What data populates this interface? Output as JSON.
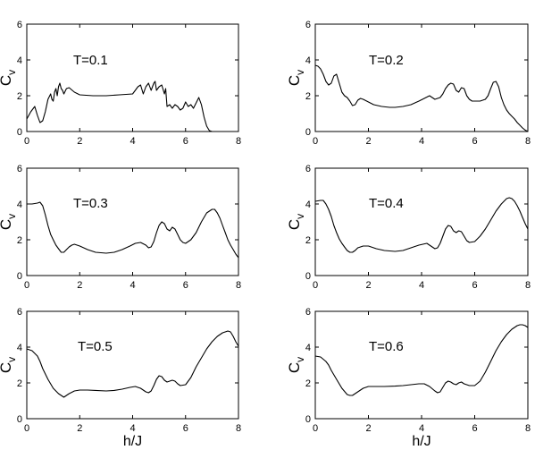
{
  "chart_data": [
    {
      "type": "line",
      "annotation": "T=0.1",
      "xlabel": "",
      "ylabel": "C",
      "ylabel_sub": "v",
      "xlim": [
        0,
        8
      ],
      "ylim": [
        0,
        6
      ],
      "xticks": [
        "0",
        "2",
        "4",
        "6",
        "8"
      ],
      "yticks": [
        "0",
        "2",
        "4",
        "6"
      ],
      "series": [
        {
          "x": [
            0,
            0.15,
            0.3,
            0.4,
            0.5,
            0.6,
            0.7,
            0.8,
            0.9,
            0.95,
            1.0,
            1.05,
            1.1,
            1.15,
            1.2,
            1.25,
            1.3,
            1.35,
            1.4,
            1.5,
            1.6,
            1.8,
            2.0,
            2.5,
            3.0,
            3.5,
            4.0,
            4.2,
            4.3,
            4.4,
            4.5,
            4.6,
            4.7,
            4.8,
            4.85,
            4.9,
            5.0,
            5.1,
            5.2,
            5.25,
            5.3,
            5.4,
            5.5,
            5.6,
            5.7,
            5.8,
            5.9,
            6.0,
            6.1,
            6.2,
            6.3,
            6.4,
            6.5,
            6.6,
            6.7,
            6.8,
            6.9,
            7.0,
            7.5,
            8.0
          ],
          "y": [
            0.7,
            1.1,
            1.4,
            0.9,
            0.5,
            0.6,
            1.1,
            1.8,
            2.1,
            1.8,
            1.7,
            2.2,
            2.4,
            2.0,
            2.5,
            2.7,
            2.4,
            2.3,
            2.1,
            2.4,
            2.45,
            2.2,
            2.05,
            2.0,
            2.0,
            2.05,
            2.1,
            2.5,
            2.6,
            2.1,
            2.5,
            2.7,
            2.3,
            2.7,
            2.8,
            2.3,
            2.5,
            2.6,
            2.1,
            2.4,
            1.4,
            1.5,
            1.3,
            1.5,
            1.4,
            1.2,
            1.3,
            1.65,
            1.4,
            1.5,
            1.3,
            1.6,
            1.9,
            1.5,
            0.8,
            0.3,
            0.05,
            0.0,
            0.0,
            0.0
          ]
        }
      ]
    },
    {
      "type": "line",
      "annotation": "T=0.2",
      "xlabel": "",
      "ylabel": "C",
      "ylabel_sub": "v",
      "xlim": [
        0,
        8
      ],
      "ylim": [
        0,
        6
      ],
      "xticks": [
        "0",
        "2",
        "4",
        "6",
        "8"
      ],
      "yticks": [
        "0",
        "2",
        "4",
        "6"
      ],
      "series": [
        {
          "x": [
            0,
            0.1,
            0.2,
            0.3,
            0.4,
            0.5,
            0.6,
            0.7,
            0.8,
            0.9,
            1.0,
            1.1,
            1.2,
            1.3,
            1.4,
            1.5,
            1.6,
            1.7,
            1.8,
            2.0,
            2.2,
            2.5,
            2.8,
            3.0,
            3.3,
            3.6,
            3.9,
            4.1,
            4.3,
            4.5,
            4.6,
            4.7,
            4.8,
            4.9,
            5.0,
            5.1,
            5.2,
            5.3,
            5.4,
            5.5,
            5.6,
            5.7,
            5.8,
            5.9,
            6.0,
            6.2,
            6.4,
            6.5,
            6.6,
            6.7,
            6.8,
            6.9,
            7.0,
            7.1,
            7.2,
            7.3,
            7.4,
            7.5,
            7.6,
            7.7,
            7.8,
            7.9,
            8.0
          ],
          "y": [
            3.7,
            3.65,
            3.5,
            3.2,
            2.8,
            2.6,
            2.7,
            3.1,
            3.2,
            2.7,
            2.2,
            2.0,
            1.9,
            1.7,
            1.45,
            1.5,
            1.75,
            1.85,
            1.8,
            1.65,
            1.5,
            1.4,
            1.35,
            1.35,
            1.4,
            1.5,
            1.7,
            1.85,
            2.0,
            1.8,
            1.85,
            1.9,
            2.1,
            2.4,
            2.6,
            2.7,
            2.65,
            2.3,
            2.2,
            2.45,
            2.4,
            2.0,
            1.8,
            1.7,
            1.7,
            1.7,
            1.8,
            2.0,
            2.4,
            2.75,
            2.8,
            2.5,
            1.9,
            1.5,
            1.2,
            1.0,
            0.85,
            0.7,
            0.5,
            0.35,
            0.2,
            0.08,
            0.0
          ]
        }
      ]
    },
    {
      "type": "line",
      "annotation": "T=0.3",
      "xlabel": "",
      "ylabel": "C",
      "ylabel_sub": "v",
      "xlim": [
        0,
        8
      ],
      "ylim": [
        0,
        6
      ],
      "xticks": [
        "0",
        "2",
        "4",
        "6",
        "8"
      ],
      "yticks": [
        "0",
        "2",
        "4",
        "6"
      ],
      "series": [
        {
          "x": [
            0,
            0.2,
            0.4,
            0.5,
            0.6,
            0.7,
            0.8,
            0.9,
            1.0,
            1.1,
            1.2,
            1.3,
            1.4,
            1.5,
            1.6,
            1.7,
            1.8,
            2.0,
            2.3,
            2.6,
            3.0,
            3.3,
            3.6,
            3.9,
            4.1,
            4.3,
            4.5,
            4.6,
            4.7,
            4.8,
            4.9,
            5.0,
            5.1,
            5.2,
            5.3,
            5.4,
            5.5,
            5.6,
            5.7,
            5.8,
            5.9,
            6.0,
            6.2,
            6.4,
            6.6,
            6.8,
            7.0,
            7.1,
            7.2,
            7.3,
            7.4,
            7.5,
            7.6,
            7.7,
            7.8,
            7.9,
            8.0
          ],
          "y": [
            4.0,
            4.0,
            4.05,
            4.1,
            3.9,
            3.4,
            2.8,
            2.3,
            2.0,
            1.7,
            1.5,
            1.3,
            1.3,
            1.45,
            1.6,
            1.7,
            1.75,
            1.65,
            1.45,
            1.3,
            1.25,
            1.3,
            1.45,
            1.65,
            1.8,
            1.85,
            1.7,
            1.55,
            1.6,
            1.9,
            2.4,
            2.8,
            3.0,
            2.9,
            2.6,
            2.5,
            2.7,
            2.6,
            2.3,
            2.0,
            1.85,
            1.8,
            2.0,
            2.4,
            3.0,
            3.5,
            3.7,
            3.7,
            3.5,
            3.2,
            2.8,
            2.4,
            2.0,
            1.7,
            1.45,
            1.2,
            1.0
          ]
        }
      ]
    },
    {
      "type": "line",
      "annotation": "T=0.4",
      "xlabel": "",
      "ylabel": "C",
      "ylabel_sub": "v",
      "xlim": [
        0,
        8
      ],
      "ylim": [
        0,
        6
      ],
      "xticks": [
        "0",
        "2",
        "4",
        "6",
        "8"
      ],
      "yticks": [
        "0",
        "2",
        "4",
        "6"
      ],
      "series": [
        {
          "x": [
            0,
            0.2,
            0.3,
            0.4,
            0.5,
            0.6,
            0.7,
            0.8,
            0.9,
            1.0,
            1.1,
            1.2,
            1.3,
            1.4,
            1.5,
            1.6,
            1.8,
            2.0,
            2.3,
            2.6,
            3.0,
            3.3,
            3.6,
            3.9,
            4.2,
            4.4,
            4.5,
            4.6,
            4.7,
            4.8,
            4.9,
            5.0,
            5.1,
            5.2,
            5.3,
            5.4,
            5.5,
            5.6,
            5.7,
            5.8,
            6.0,
            6.2,
            6.4,
            6.6,
            6.8,
            7.0,
            7.2,
            7.3,
            7.4,
            7.5,
            7.6,
            7.7,
            7.8,
            7.9,
            8.0
          ],
          "y": [
            4.15,
            4.2,
            4.2,
            4.0,
            3.7,
            3.3,
            2.8,
            2.4,
            2.05,
            1.8,
            1.6,
            1.4,
            1.3,
            1.3,
            1.4,
            1.55,
            1.65,
            1.65,
            1.5,
            1.4,
            1.35,
            1.4,
            1.55,
            1.7,
            1.8,
            1.6,
            1.5,
            1.55,
            1.8,
            2.2,
            2.6,
            2.8,
            2.75,
            2.5,
            2.4,
            2.5,
            2.45,
            2.2,
            1.95,
            1.85,
            1.9,
            2.2,
            2.6,
            3.1,
            3.6,
            4.0,
            4.3,
            4.35,
            4.3,
            4.15,
            3.9,
            3.6,
            3.25,
            2.9,
            2.6
          ]
        }
      ]
    },
    {
      "type": "line",
      "annotation": "T=0.5",
      "xlabel": "h/J",
      "ylabel": "C",
      "ylabel_sub": "v",
      "xlim": [
        0,
        8
      ],
      "ylim": [
        0,
        6
      ],
      "xticks": [
        "0",
        "2",
        "4",
        "6",
        "8"
      ],
      "yticks": [
        "0",
        "2",
        "4",
        "6"
      ],
      "series": [
        {
          "x": [
            0,
            0.2,
            0.4,
            0.5,
            0.6,
            0.8,
            1.0,
            1.2,
            1.3,
            1.4,
            1.5,
            1.6,
            1.8,
            2.0,
            2.3,
            2.6,
            3.0,
            3.3,
            3.6,
            3.9,
            4.1,
            4.3,
            4.5,
            4.6,
            4.7,
            4.8,
            4.9,
            5.0,
            5.1,
            5.2,
            5.3,
            5.4,
            5.5,
            5.6,
            5.7,
            5.8,
            6.0,
            6.2,
            6.4,
            6.6,
            6.8,
            7.0,
            7.2,
            7.4,
            7.6,
            7.7,
            7.8,
            7.9,
            8.0
          ],
          "y": [
            3.9,
            3.8,
            3.5,
            3.2,
            2.8,
            2.2,
            1.7,
            1.4,
            1.3,
            1.2,
            1.3,
            1.4,
            1.55,
            1.6,
            1.6,
            1.58,
            1.55,
            1.58,
            1.65,
            1.75,
            1.8,
            1.7,
            1.5,
            1.45,
            1.55,
            1.85,
            2.2,
            2.4,
            2.35,
            2.15,
            2.05,
            2.1,
            2.15,
            2.1,
            1.95,
            1.85,
            1.9,
            2.3,
            2.9,
            3.4,
            3.9,
            4.3,
            4.6,
            4.8,
            4.9,
            4.85,
            4.6,
            4.3,
            4.05
          ]
        }
      ]
    },
    {
      "type": "line",
      "annotation": "T=0.6",
      "xlabel": "h/J",
      "ylabel": "C",
      "ylabel_sub": "v",
      "xlim": [
        0,
        8
      ],
      "ylim": [
        0,
        6
      ],
      "xticks": [
        "0",
        "2",
        "4",
        "6",
        "8"
      ],
      "yticks": [
        "0",
        "2",
        "4",
        "6"
      ],
      "series": [
        {
          "x": [
            0,
            0.2,
            0.4,
            0.5,
            0.6,
            0.8,
            1.0,
            1.2,
            1.3,
            1.4,
            1.5,
            1.6,
            1.8,
            2.0,
            2.3,
            2.6,
            3.0,
            3.3,
            3.6,
            3.9,
            4.1,
            4.3,
            4.5,
            4.6,
            4.7,
            4.8,
            4.9,
            5.0,
            5.1,
            5.2,
            5.3,
            5.4,
            5.5,
            5.6,
            5.8,
            6.0,
            6.2,
            6.4,
            6.6,
            6.8,
            7.0,
            7.2,
            7.4,
            7.6,
            7.7,
            7.8,
            7.9,
            8.0
          ],
          "y": [
            3.5,
            3.45,
            3.2,
            3.0,
            2.7,
            2.2,
            1.7,
            1.35,
            1.3,
            1.3,
            1.4,
            1.5,
            1.7,
            1.8,
            1.8,
            1.8,
            1.82,
            1.85,
            1.9,
            1.95,
            1.95,
            1.8,
            1.55,
            1.45,
            1.5,
            1.75,
            2.0,
            2.1,
            2.05,
            1.95,
            1.9,
            2.0,
            2.05,
            1.95,
            1.85,
            1.85,
            2.1,
            2.6,
            3.2,
            3.8,
            4.3,
            4.7,
            5.0,
            5.2,
            5.25,
            5.25,
            5.2,
            5.1
          ]
        }
      ]
    }
  ]
}
